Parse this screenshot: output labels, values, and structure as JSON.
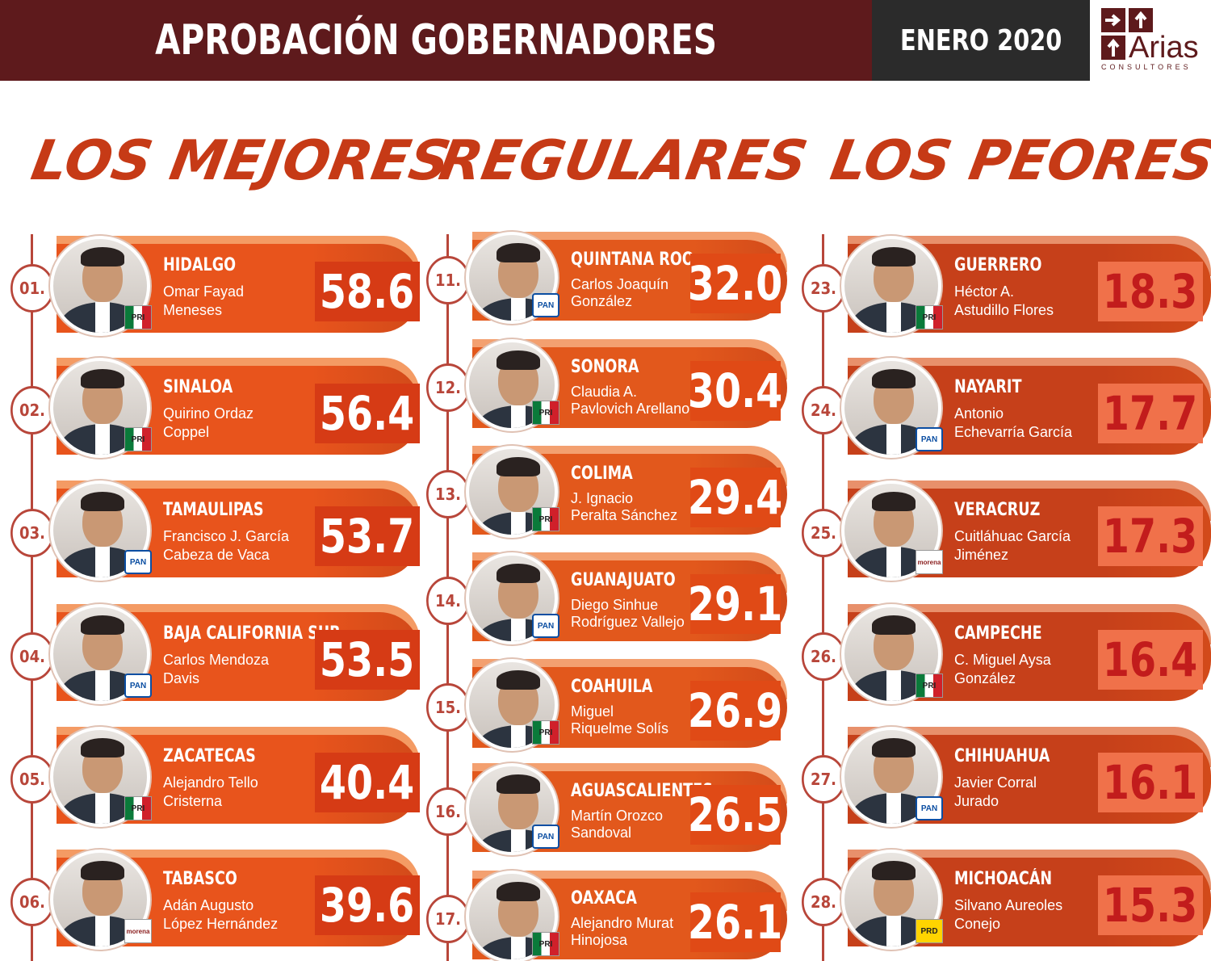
{
  "header": {
    "title": "APROBACIÓN GOBERNADORES",
    "date": "ENERO 2020",
    "logo_name": "Arias",
    "logo_sub": "CONSULTORES"
  },
  "columns": {
    "best": "LOS MEJORES",
    "regular": "REGULARES",
    "worst": "LOS PEORES"
  },
  "colors": {
    "header_bg": "#5e1a1c",
    "date_bg": "#2b2b2b",
    "accent": "#c63a16",
    "best_banner": "#e8541c",
    "regular_banner": "#e2581c",
    "worst_banner": "#c6401a"
  },
  "best": [
    {
      "rank": "01.",
      "state": "HIDALGO",
      "name1": "Omar Fayad",
      "name2": "Meneses",
      "score": "58.6",
      "party": "PRI"
    },
    {
      "rank": "02.",
      "state": "SINALOA",
      "name1": "Quirino Ordaz",
      "name2": "Coppel",
      "score": "56.4",
      "party": "PRI"
    },
    {
      "rank": "03.",
      "state": "TAMAULIPAS",
      "name1": "Francisco J. García",
      "name2": "Cabeza de Vaca",
      "score": "53.7",
      "party": "PAN"
    },
    {
      "rank": "04.",
      "state": "BAJA CALIFORNIA SUR",
      "name1": "Carlos Mendoza",
      "name2": "Davis",
      "score": "53.5",
      "party": "PAN"
    },
    {
      "rank": "05.",
      "state": "ZACATECAS",
      "name1": "Alejandro Tello",
      "name2": "Cristerna",
      "score": "40.4",
      "party": "PRI"
    },
    {
      "rank": "06.",
      "state": "TABASCO",
      "name1": "Adán Augusto",
      "name2": "López Hernández",
      "score": "39.6",
      "party": "morena"
    }
  ],
  "regular": [
    {
      "rank": "11.",
      "state": "QUINTANA ROO",
      "name1": "Carlos Joaquín",
      "name2": "González",
      "score": "32.0",
      "party": "PAN"
    },
    {
      "rank": "12.",
      "state": "SONORA",
      "name1": "Claudia A.",
      "name2": "Pavlovich Arellano",
      "score": "30.4",
      "party": "PRI"
    },
    {
      "rank": "13.",
      "state": "COLIMA",
      "name1": "J. Ignacio",
      "name2": "Peralta Sánchez",
      "score": "29.4",
      "party": "PRI"
    },
    {
      "rank": "14.",
      "state": "GUANAJUATO",
      "name1": "Diego Sinhue",
      "name2": "Rodríguez Vallejo",
      "score": "29.1",
      "party": "PAN"
    },
    {
      "rank": "15.",
      "state": "COAHUILA",
      "name1": "Miguel",
      "name2": "Riquelme Solís",
      "score": "26.9",
      "party": "PRI"
    },
    {
      "rank": "16.",
      "state": "AGUASCALIENTES",
      "name1": "Martín Orozco",
      "name2": "Sandoval",
      "score": "26.5",
      "party": "PAN"
    },
    {
      "rank": "17.",
      "state": "OAXACA",
      "name1": "Alejandro Murat",
      "name2": "Hinojosa",
      "score": "26.1",
      "party": "PRI"
    }
  ],
  "worst": [
    {
      "rank": "23.",
      "state": "GUERRERO",
      "name1": "Héctor A.",
      "name2": "Astudillo Flores",
      "score": "18.3",
      "party": "PRI"
    },
    {
      "rank": "24.",
      "state": "NAYARIT",
      "name1": "Antonio",
      "name2": "Echevarría García",
      "score": "17.7",
      "party": "PAN"
    },
    {
      "rank": "25.",
      "state": "VERACRUZ",
      "name1": "Cuitláhuac García",
      "name2": "Jiménez",
      "score": "17.3",
      "party": "morena"
    },
    {
      "rank": "26.",
      "state": "CAMPECHE",
      "name1": "C. Miguel Aysa",
      "name2": "González",
      "score": "16.4",
      "party": "PRI"
    },
    {
      "rank": "27.",
      "state": "CHIHUAHUA",
      "name1": "Javier Corral",
      "name2": "Jurado",
      "score": "16.1",
      "party": "PAN"
    },
    {
      "rank": "28.",
      "state": "MICHOACÁN",
      "name1": "Silvano Aureoles",
      "name2": "Conejo",
      "score": "15.3",
      "party": "PRD"
    }
  ]
}
